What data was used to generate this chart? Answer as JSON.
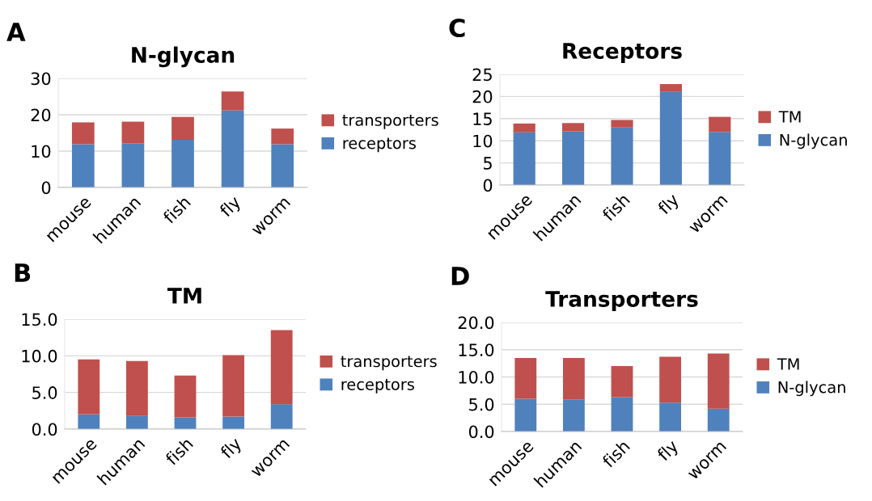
{
  "chart_data": [
    {
      "type": "bar",
      "title": "N-glycan",
      "annotations": [
        "A"
      ],
      "stacked": true,
      "categories": [
        "mouse",
        "human",
        "fish",
        "fly",
        "worm"
      ],
      "ylim": [
        0,
        30
      ],
      "yticks": [
        0,
        10,
        20,
        30
      ],
      "grid": "y",
      "legend": "right",
      "series": [
        {
          "name": "receptors",
          "color": "#4f81bd",
          "values": [
            11.9,
            12.1,
            13.1,
            21.2,
            11.9
          ]
        },
        {
          "name": "transporters",
          "color": "#c0504d",
          "values": [
            6.0,
            6.0,
            6.3,
            5.2,
            4.3
          ]
        }
      ]
    },
    {
      "type": "bar",
      "title": "Receptors",
      "annotations": [
        "C"
      ],
      "stacked": true,
      "categories": [
        "mouse",
        "human",
        "fish",
        "fly",
        "worm"
      ],
      "ylim": [
        0,
        25
      ],
      "yticks": [
        0,
        5,
        10,
        15,
        20,
        25
      ],
      "grid": "y",
      "legend": "right",
      "series": [
        {
          "name": "N-glycan",
          "color": "#4f81bd",
          "values": [
            11.9,
            12.1,
            13.0,
            21.1,
            12.0
          ]
        },
        {
          "name": "TM",
          "color": "#c0504d",
          "values": [
            2.0,
            1.9,
            1.7,
            1.7,
            3.4
          ]
        }
      ]
    },
    {
      "type": "bar",
      "title": "TM",
      "annotations": [
        "B"
      ],
      "stacked": true,
      "categories": [
        "mouse",
        "human",
        "fish",
        "fly",
        "worm"
      ],
      "ylim": [
        0,
        15
      ],
      "yticks": [
        {
          "value": 0,
          "label": "0.0"
        },
        {
          "value": 5,
          "label": "5.0"
        },
        {
          "value": 10,
          "label": "10.0"
        },
        {
          "value": 15,
          "label": "15.0"
        }
      ],
      "grid": "y",
      "legend": "right",
      "series": [
        {
          "name": "receptors",
          "color": "#4f81bd",
          "values": [
            2.0,
            1.8,
            1.6,
            1.7,
            3.4
          ]
        },
        {
          "name": "transporters",
          "color": "#c0504d",
          "values": [
            7.5,
            7.5,
            5.7,
            8.4,
            10.1
          ]
        }
      ]
    },
    {
      "type": "bar",
      "title": "Transporters",
      "annotations": [
        "D"
      ],
      "stacked": true,
      "categories": [
        "mouse",
        "human",
        "fish",
        "fly",
        "worm"
      ],
      "ylim": [
        0,
        20
      ],
      "yticks": [
        {
          "value": 0,
          "label": "0.0"
        },
        {
          "value": 5,
          "label": "5.0"
        },
        {
          "value": 10,
          "label": "10.0"
        },
        {
          "value": 15,
          "label": "15.0"
        },
        {
          "value": 20,
          "label": "20.0"
        }
      ],
      "grid": "y",
      "legend": "right",
      "series": [
        {
          "name": "N-glycan",
          "color": "#4f81bd",
          "values": [
            6.0,
            5.9,
            6.3,
            5.3,
            4.2
          ]
        },
        {
          "name": "TM",
          "color": "#c0504d",
          "values": [
            7.5,
            7.6,
            5.7,
            8.4,
            10.1
          ]
        }
      ]
    }
  ]
}
